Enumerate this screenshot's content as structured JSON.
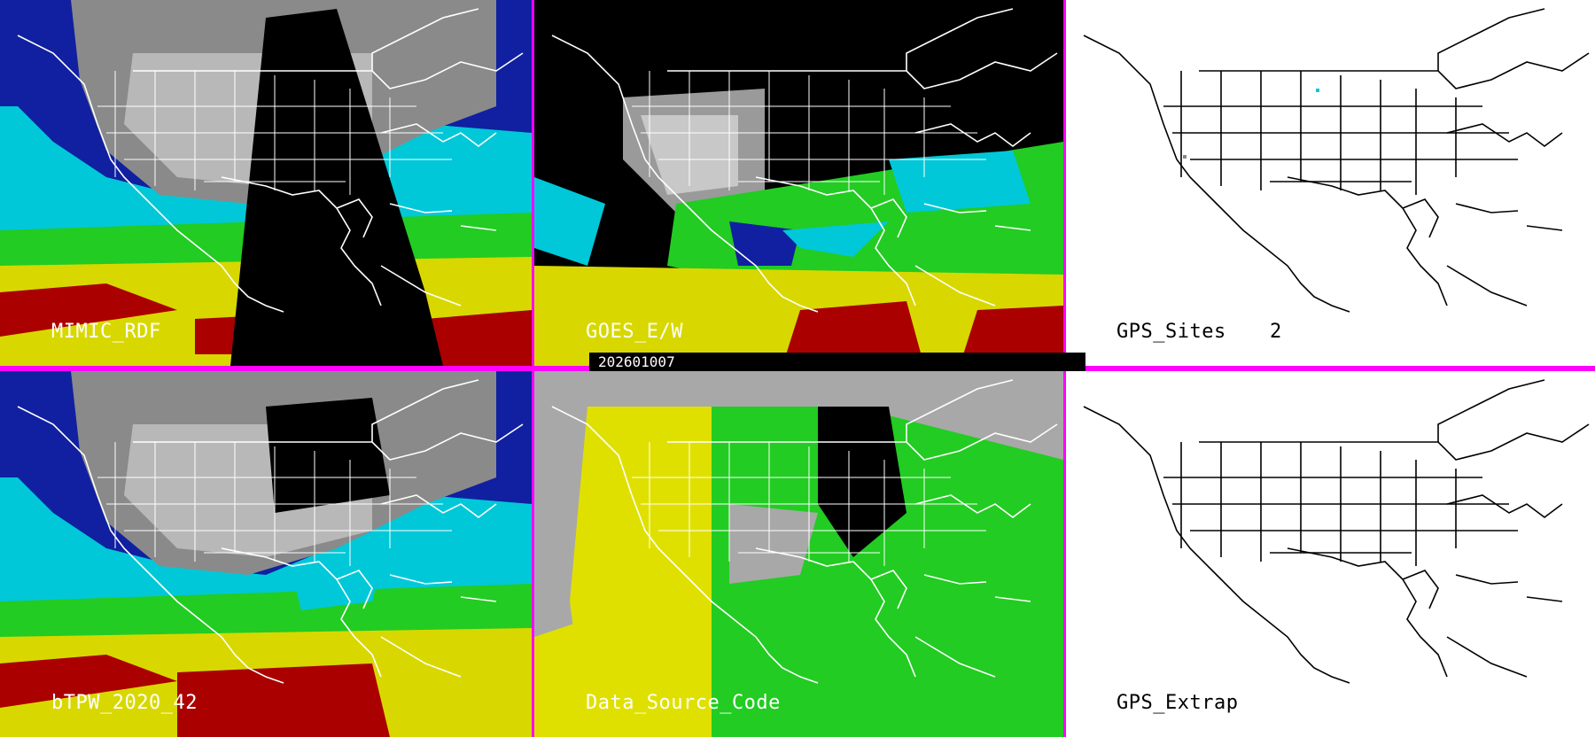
{
  "date_label": "202601007",
  "colors": {
    "divider": "#ff00ff",
    "land_gray": "#9a9a9a",
    "dry_yellow": "#e8e000",
    "green": "#00cc00",
    "cyan": "#00e8e8",
    "blue": "#1020b0",
    "red": "#b00000",
    "black": "#000000"
  },
  "panels": [
    {
      "id": "mimic-rdf",
      "label": "MIMIC_RDF",
      "value": "",
      "style": "tpw"
    },
    {
      "id": "goes-ew",
      "label": "GOES_E/W",
      "value": "",
      "style": "goes"
    },
    {
      "id": "gps-sites",
      "label": "GPS_Sites",
      "value": "2",
      "style": "white"
    },
    {
      "id": "btpw",
      "label": "bTPW_2020_42",
      "value": "",
      "style": "tpw"
    },
    {
      "id": "data-source",
      "label": "Data_Source_Code",
      "value": "",
      "style": "source"
    },
    {
      "id": "gps-extrap",
      "label": "GPS_Extrap",
      "value": "",
      "style": "white"
    }
  ]
}
